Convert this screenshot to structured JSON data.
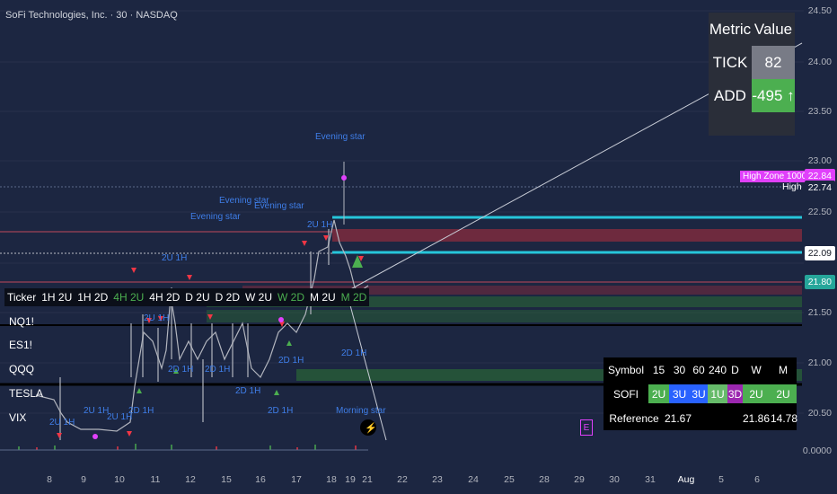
{
  "header": {
    "title": "SoFi Technologies, Inc. · 30 · NASDAQ"
  },
  "price_axis": {
    "labels": [
      "24.50",
      "24.00",
      "23.50",
      "23.00",
      "22.50",
      "22.00",
      "21.50",
      "21.00",
      "20.50",
      "0.0000"
    ],
    "tags": {
      "high_zone": "High Zone 1000",
      "high_zone_value": "22.84",
      "high_label": "High",
      "high_value": "22.74",
      "price_22_09": "22.09",
      "price_21_80": "21.80"
    }
  },
  "time_axis": {
    "labels": [
      "8",
      "9",
      "10",
      "11",
      "12",
      "15",
      "16",
      "17",
      "18",
      "19",
      "21",
      "22",
      "23",
      "24",
      "25",
      "28",
      "29",
      "30",
      "31",
      "Aug",
      "5",
      "6"
    ]
  },
  "metric_table": {
    "header_metric": "Metric",
    "header_value": "Value",
    "tick_label": "TICK",
    "tick_value": "82",
    "add_label": "ADD",
    "add_value": "-495 ↑"
  },
  "ticker_list": {
    "header": [
      "Ticker",
      "1H 2U",
      "1H 2D",
      "4H 2U",
      "4H 2D",
      "D 2U",
      "D 2D",
      "W 2U",
      "W 2D",
      "M 2U",
      "M 2D"
    ],
    "rows": [
      "NQ1!",
      "ES1!",
      "QQQ",
      "TESLA",
      "VIX"
    ]
  },
  "symbol_table": {
    "header": [
      "Symbol",
      "15",
      "30",
      "60",
      "240",
      "D",
      "W",
      "M"
    ],
    "row": [
      "SOFI",
      "2U",
      "3U",
      "3U",
      "1U",
      "3D",
      "2U",
      "2U"
    ],
    "ref_label": "Reference",
    "ref_1": "21.67",
    "ref_2": "21.86",
    "ref_3": "14.78"
  },
  "annotations": {
    "evening_star_1": "Evening star",
    "evening_star_2": "Evening star",
    "evening_star_3": "Evening star",
    "evening_star_4": "Evening star",
    "morning_star": "Morning star",
    "a_2u_1h_1": "2U 1H",
    "a_2u_1h_2": "2U 1H",
    "a_2u_1h_3": "2U 1H",
    "a_2u_1h_4": "2U 1H",
    "a_2u_1h_5": "2U 1H",
    "a_2u_1h_6": "2U 1H",
    "a_2d_1h_1": "2D 1H",
    "a_2d_1h_2": "2D 1H",
    "a_2d_1h_3": "2D 1H",
    "a_2d_1h_4": "2D 1H",
    "a_2d_1h_5": "2D 1H",
    "a_2d_1h_6": "2D 1H",
    "a_2d_1h_7": "2D 1H",
    "e_badge": "E"
  },
  "colors": {
    "background": "#1c2641",
    "bull": "#4caf50",
    "bear": "#f23645",
    "cyan": "#26c6da",
    "magenta": "#e040fb"
  }
}
